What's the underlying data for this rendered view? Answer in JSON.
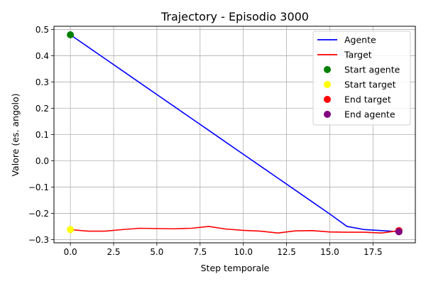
{
  "chart_data": {
    "type": "line",
    "title": "Trajectory - Episodio 3000",
    "xlabel": "Step temporale",
    "ylabel": "Valore (es. angolo)",
    "xlim": [
      -0.95,
      19.95
    ],
    "ylim": [
      -0.3124,
      0.5124
    ],
    "xticks": [
      0.0,
      2.5,
      5.0,
      7.5,
      10.0,
      12.5,
      15.0,
      17.5
    ],
    "xtick_labels": [
      "0.0",
      "2.5",
      "5.0",
      "7.5",
      "10.0",
      "12.5",
      "15.0",
      "17.5"
    ],
    "yticks": [
      -0.3,
      -0.2,
      -0.1,
      0.0,
      0.1,
      0.2,
      0.3,
      0.4,
      0.5
    ],
    "ytick_labels": [
      "−0.3",
      "−0.2",
      "−0.1",
      "0.0",
      "0.1",
      "0.2",
      "0.3",
      "0.4",
      "0.5"
    ],
    "grid": true,
    "legend_position": "top-right",
    "x": [
      0,
      1,
      2,
      3,
      4,
      5,
      6,
      7,
      8,
      9,
      10,
      11,
      12,
      13,
      14,
      15,
      16,
      17,
      18,
      19
    ],
    "series": [
      {
        "name": "Agente",
        "color": "#0000ff",
        "values": [
          0.48,
          0.4345,
          0.389,
          0.3435,
          0.298,
          0.2525,
          0.207,
          0.1615,
          0.116,
          0.0705,
          0.025,
          -0.0205,
          -0.066,
          -0.1115,
          -0.157,
          -0.2025,
          -0.25,
          -0.262,
          -0.266,
          -0.27
        ]
      },
      {
        "name": "Target",
        "color": "#ff0000",
        "values": [
          -0.262,
          -0.268,
          -0.268,
          -0.262,
          -0.257,
          -0.258,
          -0.259,
          -0.257,
          -0.25,
          -0.26,
          -0.265,
          -0.268,
          -0.275,
          -0.267,
          -0.266,
          -0.271,
          -0.272,
          -0.272,
          -0.275,
          -0.266
        ]
      }
    ],
    "markers": [
      {
        "name": "Start agente",
        "x": 0,
        "y": 0.48,
        "color": "#008000"
      },
      {
        "name": "Start target",
        "x": 0,
        "y": -0.262,
        "color": "#ffff00"
      },
      {
        "name": "End target",
        "x": 19,
        "y": -0.266,
        "color": "#ff0000"
      },
      {
        "name": "End agente",
        "x": 19,
        "y": -0.27,
        "color": "#800080"
      }
    ]
  }
}
